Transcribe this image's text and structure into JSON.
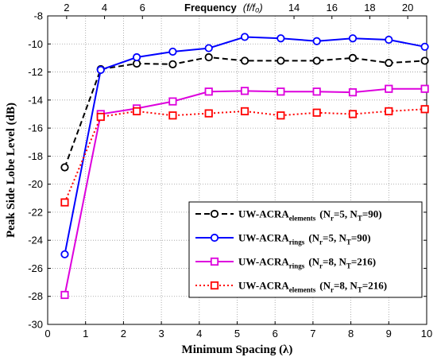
{
  "chart_data": {
    "type": "line",
    "xlabel": "Minimum Spacing (λ)",
    "ylabel": "Peak Side Lobe Level (dB)",
    "xlim": [
      0,
      10
    ],
    "ylim": [
      -30,
      -8
    ],
    "x_ticks": [
      0,
      1,
      2,
      3,
      4,
      5,
      6,
      7,
      8,
      9,
      10
    ],
    "y_ticks": [
      -30,
      -28,
      -26,
      -24,
      -22,
      -20,
      -18,
      -16,
      -14,
      -12,
      -10,
      -8
    ],
    "top_axis": {
      "title_main": "Frequency",
      "title_unit": "(f/f₀)",
      "ticks": [
        {
          "x": 0.5,
          "label": "2"
        },
        {
          "x": 1.5,
          "label": "4"
        },
        {
          "x": 2.5,
          "label": "6"
        },
        {
          "x": 6.5,
          "label": "14"
        },
        {
          "x": 7.5,
          "label": "16"
        },
        {
          "x": 8.5,
          "label": "18"
        },
        {
          "x": 9.5,
          "label": "20"
        }
      ]
    },
    "grid": true,
    "legend_position": "bottom-right",
    "series": [
      {
        "base": "UW-ACRA",
        "sub": "elements",
        "params": "(N",
        "p1sub": "r",
        "p1val": "=5, N",
        "p2sub": "T",
        "p2val": "=90)",
        "color": "#000000",
        "dash": "7,4",
        "marker": "circle",
        "x": [
          0.45,
          1.4,
          2.35,
          3.3,
          4.25,
          5.2,
          6.15,
          7.1,
          8.05,
          9.0,
          9.95
        ],
        "values": [
          -18.8,
          -11.8,
          -11.4,
          -11.45,
          -10.95,
          -11.2,
          -11.2,
          -11.2,
          -11.0,
          -11.35,
          -11.2
        ]
      },
      {
        "base": "UW-ACRA",
        "sub": "rings",
        "params": "(N",
        "p1sub": "r",
        "p1val": "=5, N",
        "p2sub": "T",
        "p2val": "=90)",
        "color": "#0000ff",
        "dash": "",
        "marker": "circle",
        "x": [
          0.45,
          1.4,
          2.35,
          3.3,
          4.25,
          5.2,
          6.15,
          7.1,
          8.05,
          9.0,
          9.95
        ],
        "values": [
          -25.0,
          -11.85,
          -10.95,
          -10.55,
          -10.3,
          -9.5,
          -9.6,
          -9.8,
          -9.6,
          -9.7,
          -10.2
        ]
      },
      {
        "base": "UW-ACRA",
        "sub": "rings",
        "params": "(N",
        "p1sub": "r",
        "p1val": "=8, N",
        "p2sub": "T",
        "p2val": "=216)",
        "color": "#dd00dd",
        "dash": "",
        "marker": "square",
        "x": [
          0.45,
          1.4,
          2.35,
          3.3,
          4.25,
          5.2,
          6.15,
          7.1,
          8.05,
          9.0,
          9.95
        ],
        "values": [
          -27.9,
          -15.0,
          -14.6,
          -14.1,
          -13.4,
          -13.35,
          -13.4,
          -13.4,
          -13.45,
          -13.2,
          -13.2
        ]
      },
      {
        "base": "UW-ACRA",
        "sub": "elements",
        "params": "(N",
        "p1sub": "r",
        "p1val": "=8, N",
        "p2sub": "T",
        "p2val": "=216)",
        "color": "#ff0000",
        "dash": "2,3",
        "marker": "square",
        "x": [
          0.45,
          1.4,
          2.35,
          3.3,
          4.25,
          5.2,
          6.15,
          7.1,
          8.05,
          9.0,
          9.95
        ],
        "values": [
          -21.3,
          -15.2,
          -14.8,
          -15.1,
          -14.95,
          -14.8,
          -15.1,
          -14.9,
          -15.0,
          -14.8,
          -14.65
        ]
      }
    ]
  }
}
